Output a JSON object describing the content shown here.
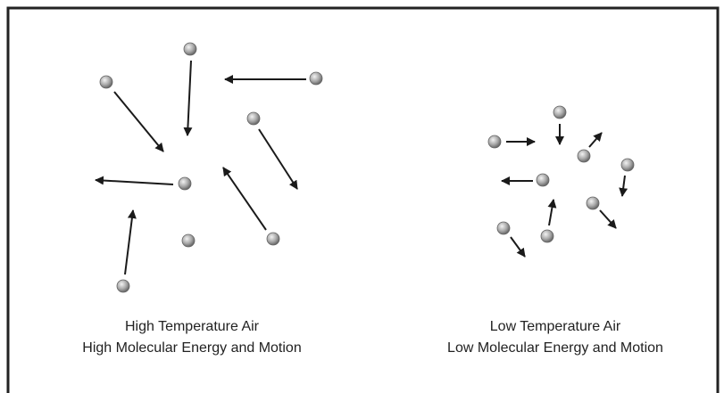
{
  "captions": [
    {
      "line1": "High Temperature Air",
      "line2": "High Molecular Energy and Motion"
    },
    {
      "line1": "Low Temperature Air",
      "line2": "Low Molecular Energy and Motion"
    }
  ]
}
